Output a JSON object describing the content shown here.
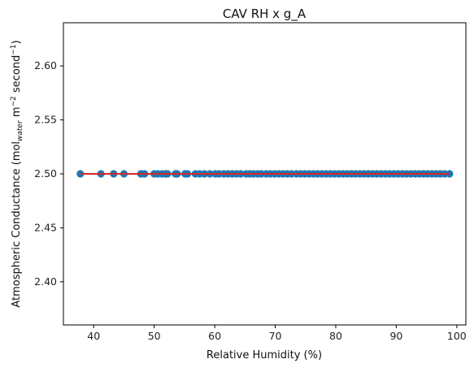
{
  "chart_data": {
    "type": "scatter",
    "title": "CAV RH x g_A",
    "xlabel": "Relative Humidity (%)",
    "ylabel_main": "Atmospheric Conductance (mol",
    "ylabel_sub": "water",
    "ylabel_rest": " m",
    "ylabel_sup1": "−2",
    "ylabel_mid": " second",
    "ylabel_sup2": "−1",
    "ylabel_end": ")",
    "xlim": [
      35,
      101.5
    ],
    "ylim": [
      2.36,
      2.64
    ],
    "xticks": [
      40,
      50,
      60,
      70,
      80,
      90,
      100
    ],
    "yticks": [
      2.4,
      2.45,
      2.5,
      2.55,
      2.6
    ],
    "grid": false,
    "marker_color": "#1f77b4",
    "line_color": "#d62728",
    "fit_line": {
      "x": [
        37.8,
        98.8
      ],
      "y": [
        2.5,
        2.5
      ]
    },
    "points": {
      "y": 2.5,
      "x": [
        37.8,
        41.2,
        43.3,
        45.0,
        47.8,
        48.4,
        50.0,
        50.6,
        51.3,
        51.9,
        52.2,
        53.5,
        53.8,
        55.1,
        55.5,
        56.8,
        57.5,
        58.3,
        59.2,
        60.1,
        60.7,
        61.5,
        62.2,
        62.9,
        63.6,
        64.3,
        65.2,
        65.8,
        66.4,
        67.1,
        67.7,
        68.5,
        69.2,
        69.9,
        70.6,
        71.3,
        72.0,
        72.7,
        73.5,
        74.2,
        74.9,
        75.6,
        76.3,
        77.0,
        77.7,
        78.4,
        79.1,
        79.8,
        80.5,
        81.2,
        81.9,
        82.6,
        83.3,
        84.0,
        84.7,
        85.4,
        86.1,
        86.8,
        87.5,
        88.2,
        88.9,
        89.6,
        90.3,
        91.0,
        91.7,
        92.4,
        93.1,
        93.8,
        94.5,
        95.2,
        95.9,
        96.6,
        97.3,
        98.0,
        98.8
      ]
    }
  }
}
